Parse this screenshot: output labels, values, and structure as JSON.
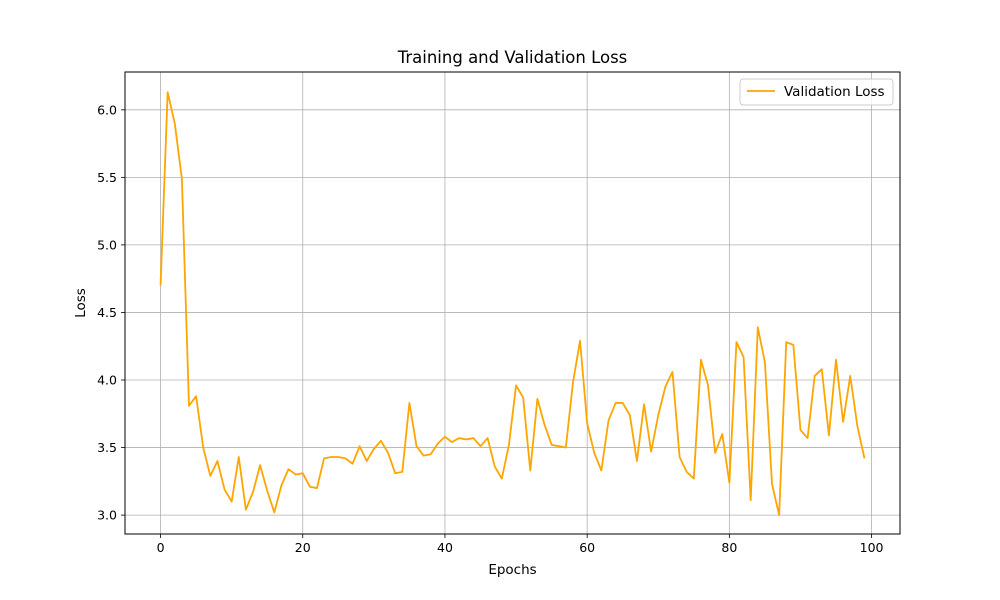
{
  "chart_data": {
    "type": "line",
    "title": "Training and Validation Loss",
    "xlabel": "Epochs",
    "ylabel": "Loss",
    "xlim": [
      -5,
      104
    ],
    "ylim": [
      2.86,
      6.28
    ],
    "grid": true,
    "legend_position": "top-right",
    "x_ticks": [
      0,
      20,
      40,
      60,
      80,
      100
    ],
    "x_tick_labels": [
      "0",
      "20",
      "40",
      "60",
      "80",
      "100"
    ],
    "y_ticks": [
      3.0,
      3.5,
      4.0,
      4.5,
      5.0,
      5.5,
      6.0
    ],
    "y_tick_labels": [
      "3.0",
      "3.5",
      "4.0",
      "4.5",
      "5.0",
      "5.5",
      "6.0"
    ],
    "series": [
      {
        "name": "Validation Loss",
        "color": "#ffa500",
        "x": [
          0,
          1,
          2,
          3,
          4,
          5,
          6,
          7,
          8,
          9,
          10,
          11,
          12,
          13,
          14,
          15,
          16,
          17,
          18,
          19,
          20,
          21,
          22,
          23,
          24,
          25,
          26,
          27,
          28,
          29,
          30,
          31,
          32,
          33,
          34,
          35,
          36,
          37,
          38,
          39,
          40,
          41,
          42,
          43,
          44,
          45,
          46,
          47,
          48,
          49,
          50,
          51,
          52,
          53,
          54,
          55,
          56,
          57,
          58,
          59,
          60,
          61,
          62,
          63,
          64,
          65,
          66,
          67,
          68,
          69,
          70,
          71,
          72,
          73,
          74,
          75,
          76,
          77,
          78,
          79,
          80,
          81,
          82,
          83,
          84,
          85,
          86,
          87,
          88,
          89,
          90,
          91,
          92,
          93,
          94,
          95,
          96,
          97,
          98,
          99
        ],
        "values": [
          4.7,
          6.13,
          5.9,
          5.49,
          3.81,
          3.88,
          3.5,
          3.29,
          3.4,
          3.19,
          3.1,
          3.43,
          3.04,
          3.17,
          3.37,
          3.18,
          3.02,
          3.22,
          3.34,
          3.3,
          3.31,
          3.21,
          3.2,
          3.42,
          3.43,
          3.43,
          3.42,
          3.38,
          3.51,
          3.4,
          3.49,
          3.55,
          3.46,
          3.31,
          3.32,
          3.83,
          3.51,
          3.44,
          3.45,
          3.53,
          3.58,
          3.54,
          3.57,
          3.56,
          3.57,
          3.51,
          3.57,
          3.36,
          3.27,
          3.52,
          3.96,
          3.87,
          3.33,
          3.86,
          3.67,
          3.52,
          3.51,
          3.5,
          3.98,
          4.29,
          3.68,
          3.46,
          3.33,
          3.7,
          3.83,
          3.83,
          3.74,
          3.4,
          3.82,
          3.47,
          3.74,
          3.95,
          4.06,
          3.43,
          3.32,
          3.27,
          4.15,
          3.96,
          3.46,
          3.6,
          3.24,
          4.28,
          4.17,
          3.11,
          4.39,
          4.13,
          3.23,
          3.0,
          4.28,
          4.26,
          3.63,
          3.57,
          4.03,
          4.08,
          3.59,
          4.15,
          3.69,
          4.03,
          3.66,
          3.42
        ]
      }
    ]
  }
}
